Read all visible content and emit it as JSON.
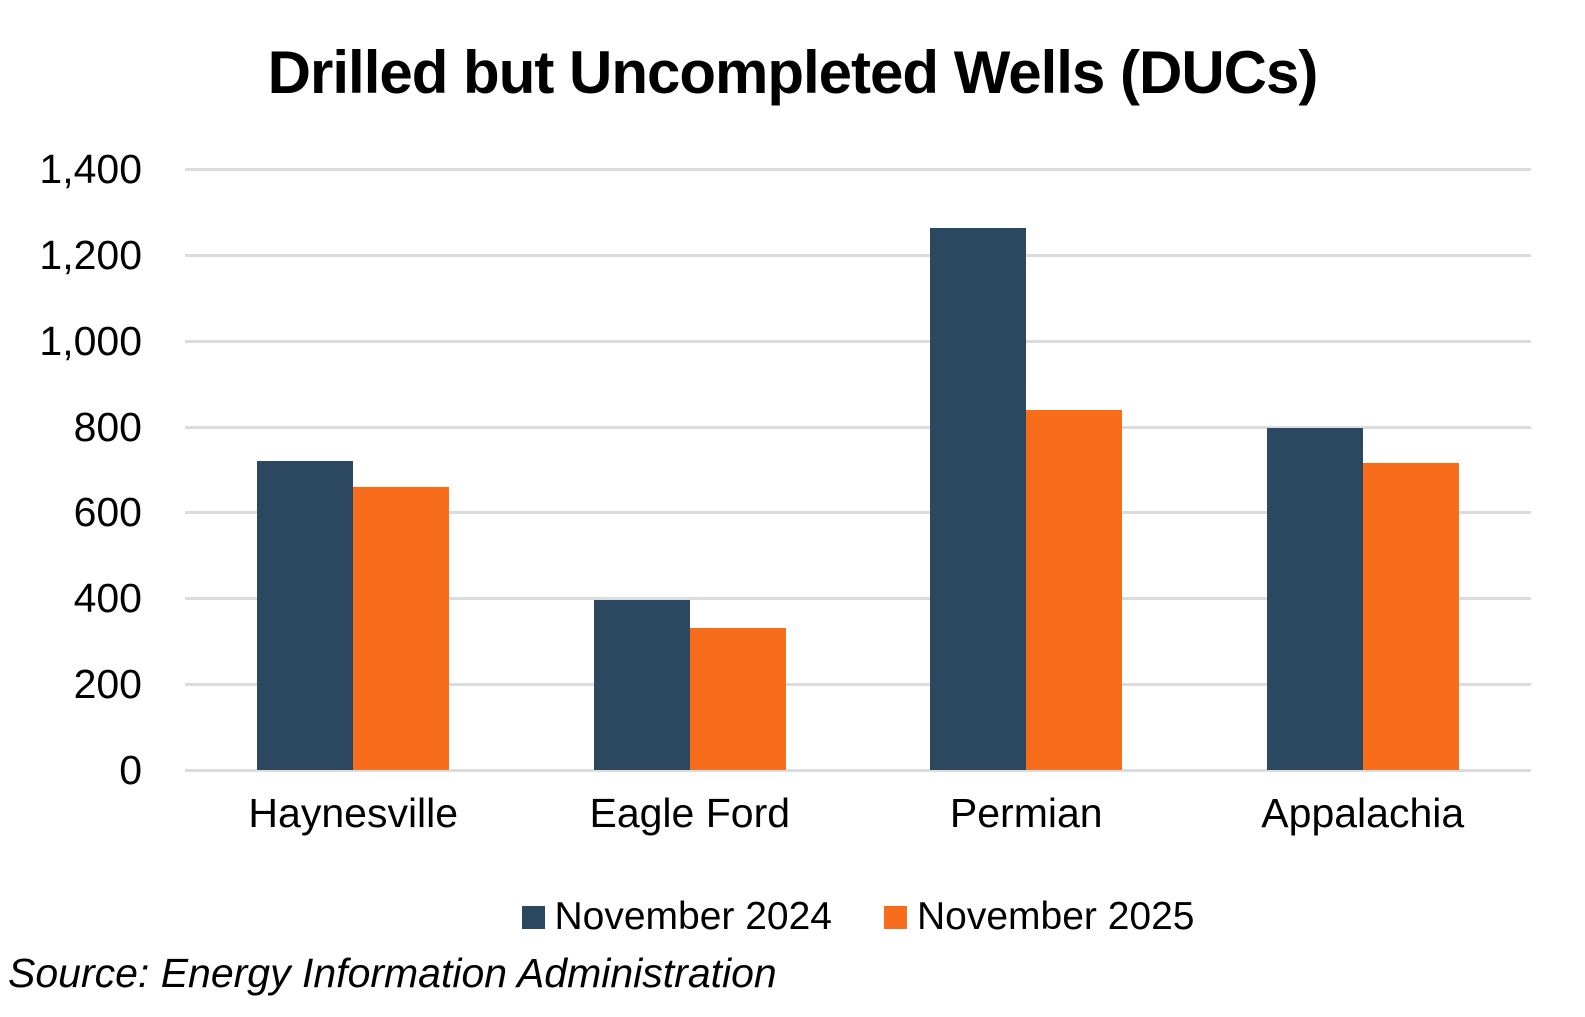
{
  "title": "Drilled but Uncompleted Wells (DUCs)",
  "source_note": "Source: Energy Information Administration",
  "colors": {
    "series_2024": "#2C4760",
    "series_2025": "#F76D1B",
    "gridline": "#DCDCDC",
    "text": "#000000",
    "background": "#FFFFFF"
  },
  "chart_data": {
    "type": "bar",
    "title": "Drilled but Uncompleted Wells (DUCs)",
    "categories": [
      "Haynesville",
      "Eagle Ford",
      "Permian",
      "Appalachia"
    ],
    "series": [
      {
        "name": "November 2024",
        "color": "#2C4760",
        "values": [
          720,
          397,
          1263,
          796
        ]
      },
      {
        "name": "November 2025",
        "color": "#F76D1B",
        "values": [
          659,
          330,
          838,
          716
        ]
      }
    ],
    "xlabel": "",
    "ylabel": "",
    "ylim": [
      0,
      1400
    ],
    "ytick_step": 200,
    "ytick_labels": [
      "0",
      "200",
      "400",
      "600",
      "800",
      "1,000",
      "1,200",
      "1,400"
    ],
    "grid": true,
    "legend_position": "bottom",
    "annotation": "Source: Energy Information Administration"
  }
}
